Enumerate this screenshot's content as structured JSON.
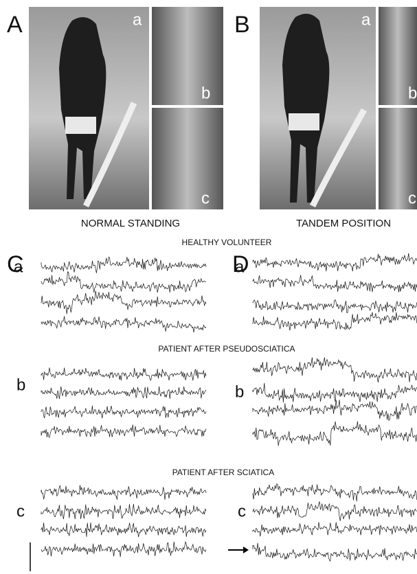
{
  "panels": [
    {
      "label": "A",
      "caption": "NORMAL STANDING",
      "photos": [
        "a",
        "b",
        "c"
      ]
    },
    {
      "label": "B",
      "caption": "TANDEM POSITION",
      "photos": [
        "a",
        "b",
        "c"
      ]
    }
  ],
  "recordings": [
    {
      "title": "HEALTHY VOLUNTEER",
      "left": {
        "panel": "C",
        "label": "a"
      },
      "right": {
        "panel": "D",
        "label": "a"
      }
    },
    {
      "title": "PATIENT AFTER PSEUDOSCIATICA",
      "left": {
        "label": "b"
      },
      "right": {
        "label": "b"
      }
    },
    {
      "title": "PATIENT AFTER SCIATICA",
      "left": {
        "label": "c"
      },
      "right": {
        "label": "c"
      }
    }
  ]
}
